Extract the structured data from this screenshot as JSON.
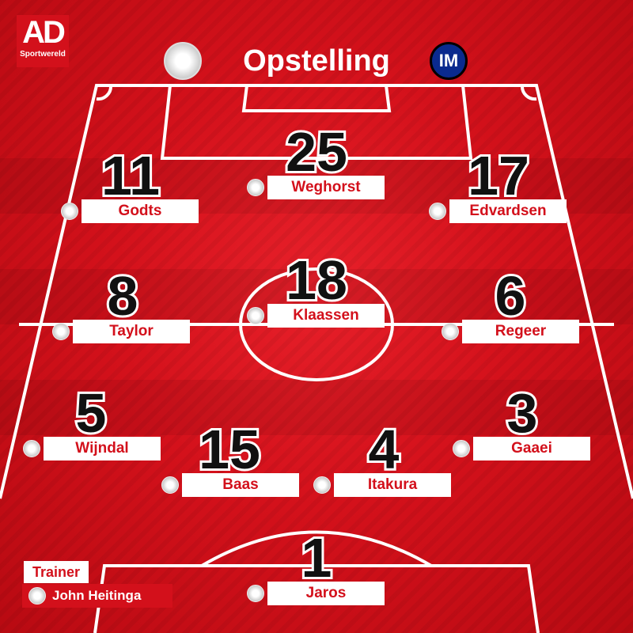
{
  "brand": {
    "logo_text": "AD",
    "logo_sub": "Sportwereld"
  },
  "title": "Opstelling",
  "colors": {
    "accent": "#d3101b",
    "field_line": "#ffffff"
  },
  "players": [
    {
      "number": "11",
      "name": "Godts"
    },
    {
      "number": "25",
      "name": "Weghorst"
    },
    {
      "number": "17",
      "name": "Edvardsen"
    },
    {
      "number": "8",
      "name": "Taylor"
    },
    {
      "number": "18",
      "name": "Klaassen"
    },
    {
      "number": "6",
      "name": "Regeer"
    },
    {
      "number": "5",
      "name": "Wijndal"
    },
    {
      "number": "15",
      "name": "Baas"
    },
    {
      "number": "4",
      "name": "Itakura"
    },
    {
      "number": "3",
      "name": "Gaaei"
    },
    {
      "number": "1",
      "name": "Jaros"
    }
  ],
  "trainer": {
    "label": "Trainer",
    "name": "John Heitinga"
  }
}
